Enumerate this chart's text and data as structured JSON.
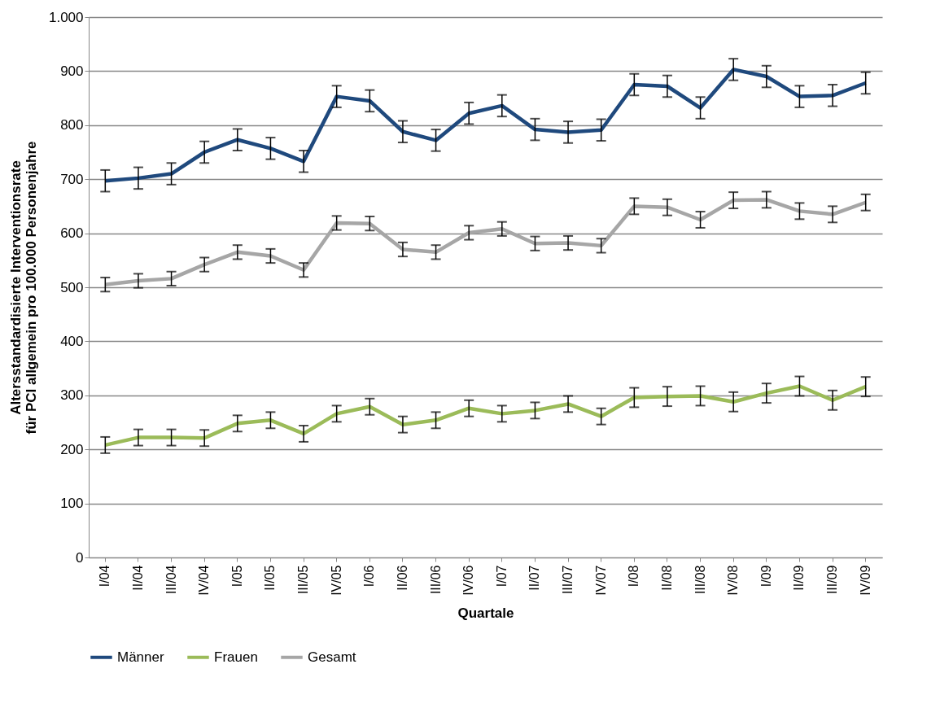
{
  "chart_data": {
    "type": "line",
    "xlabel": "Quartale",
    "ylabel": "Altersstandardisierte Interventionsrate\nfür PCI allgemein pro 100.000 Personenjahre",
    "categories": [
      "I/04",
      "II/04",
      "III/04",
      "IV/04",
      "I/05",
      "II/05",
      "III/05",
      "IV/05",
      "I/06",
      "II/06",
      "III/06",
      "IV/06",
      "I/07",
      "II/07",
      "III/07",
      "IV/07",
      "I/08",
      "II/08",
      "III/08",
      "IV/08",
      "I/09",
      "II/09",
      "III/09",
      "IV/09"
    ],
    "series": [
      {
        "name": "Männer",
        "color": "#1f497d",
        "values": [
          697,
          702,
          710,
          750,
          773,
          757,
          733,
          853,
          845,
          788,
          772,
          822,
          836,
          792,
          787,
          791,
          875,
          872,
          832,
          903,
          890,
          853,
          855,
          878
        ],
        "errors": [
          20,
          20,
          20,
          20,
          20,
          20,
          20,
          20,
          20,
          20,
          20,
          20,
          20,
          20,
          20,
          20,
          20,
          20,
          20,
          20,
          20,
          20,
          20,
          20
        ]
      },
      {
        "name": "Frauen",
        "color": "#9bbb59",
        "values": [
          208,
          222,
          222,
          221,
          248,
          254,
          229,
          266,
          279,
          246,
          254,
          276,
          266,
          272,
          284,
          261,
          296,
          298,
          299,
          288,
          304,
          317,
          291,
          316
        ],
        "errors": [
          15,
          15,
          15,
          15,
          15,
          15,
          15,
          15,
          15,
          15,
          15,
          15,
          15,
          15,
          15,
          15,
          18,
          18,
          18,
          18,
          18,
          18,
          18,
          18
        ]
      },
      {
        "name": "Gesamt",
        "color": "#a6a6a6",
        "values": [
          505,
          512,
          516,
          542,
          565,
          558,
          532,
          619,
          618,
          570,
          565,
          601,
          608,
          581,
          582,
          577,
          650,
          648,
          625,
          661,
          662,
          641,
          635,
          657
        ],
        "errors": [
          13,
          13,
          13,
          13,
          13,
          13,
          13,
          13,
          13,
          13,
          13,
          13,
          13,
          13,
          13,
          13,
          15,
          15,
          15,
          15,
          15,
          15,
          15,
          15
        ]
      }
    ],
    "ylim": [
      0,
      1000
    ],
    "yticks": [
      0,
      100,
      200,
      300,
      400,
      500,
      600,
      700,
      800,
      900,
      {
        "value": 1000,
        "label": "1.000"
      }
    ],
    "grid": "y",
    "legend": "bottom"
  }
}
